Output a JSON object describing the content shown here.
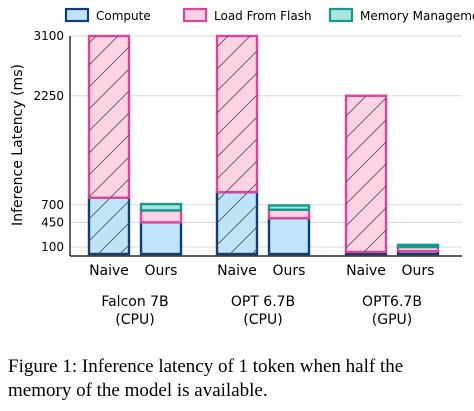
{
  "chart_data": {
    "type": "bar",
    "stacked": true,
    "ylabel": "Inference Latency (ms)",
    "yticks": [
      100,
      450,
      700,
      2250,
      3100
    ],
    "ylim": [
      0,
      3200
    ],
    "grid": "horizontal",
    "legend_placement": "top",
    "groups": [
      {
        "label_line1": "Falcon 7B",
        "label_line2": "(CPU)",
        "bars": [
          "Naive",
          "Ours"
        ]
      },
      {
        "label_line1": "OPT 6.7B",
        "label_line2": "(CPU)",
        "bars": [
          "Naive",
          "Ours"
        ]
      },
      {
        "label_line1": "OPT6.7B",
        "label_line2": "(GPU)",
        "bars": [
          "Naive",
          "Ours"
        ]
      }
    ],
    "series": [
      {
        "name": "Compute",
        "color": "#bfe3f7",
        "edge": "#0d3f73",
        "values": [
          [
            800,
            450
          ],
          [
            880,
            510
          ],
          [
            30,
            40
          ]
        ]
      },
      {
        "name": "Load From Flash",
        "color": "#fcd3e3",
        "edge": "#e0439a",
        "values": [
          [
            2300,
            170
          ],
          [
            2220,
            120
          ],
          [
            2220,
            60
          ]
        ]
      },
      {
        "name": "Memory Management",
        "color": "#a8e5dc",
        "edge": "#159a8c",
        "values": [
          [
            0,
            90
          ],
          [
            0,
            60
          ],
          [
            0,
            30
          ]
        ]
      }
    ]
  },
  "caption": "Figure 1: Inference latency of 1 token when half the memory of the model is available."
}
